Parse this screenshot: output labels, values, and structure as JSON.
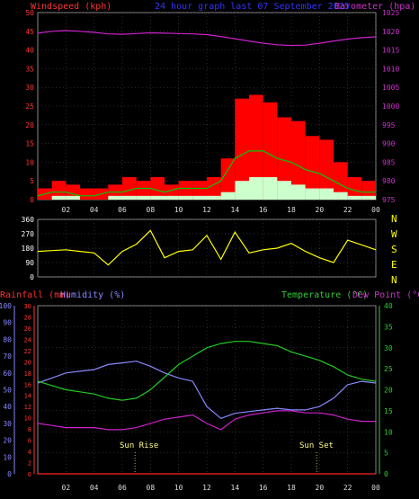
{
  "colors": {
    "wind": "#ff0000",
    "gust_fill": "#ff0000",
    "avg_line": "#00cc00",
    "min_fill": "#ccffcc",
    "pressure": "#cc22cc",
    "direction": "#ffff00",
    "rain": "#ff2222",
    "humidity": "#8888ff",
    "temperature": "#22cc22",
    "dewpoint": "#cc22cc",
    "axis_left_top": "#ff3333",
    "axis_right_top": "#cc33cc",
    "axis_bottom_left1": "#8888ff",
    "axis_bottom_left2": "#ff3333",
    "axis_bottom_right": "#33cc33",
    "grid": "#555555",
    "frame": "#888888"
  },
  "header": {
    "left": "Windspeed (kph)",
    "center": "24 hour graph last  07 September 2025",
    "right": "Barometer (hpa)"
  },
  "middle": {
    "compass": [
      "N",
      "W",
      "S",
      "E",
      "N"
    ]
  },
  "bottom_header": {
    "rain": "Rainfall (mm)",
    "humidity": "Humidity (%)",
    "temperature": "Temperature (°C)",
    "dewpoint": "Dew Point (°C)"
  },
  "annotations": {
    "sunrise": "Sun Rise",
    "sunset": "Sun Set"
  },
  "x_ticks": [
    "02",
    "04",
    "06",
    "08",
    "10",
    "12",
    "14",
    "16",
    "18",
    "20",
    "22",
    "00"
  ],
  "chart_data": [
    {
      "type": "area",
      "title": "24 hour graph last  07 September 2025",
      "ylabel": "Windspeed (kph)",
      "y2label": "Barometer (hpa)",
      "ylim": [
        0,
        50
      ],
      "y2lim": [
        975,
        1025
      ],
      "yticks": [
        "0",
        "5",
        "10",
        "15",
        "20",
        "25",
        "30",
        "35",
        "40",
        "45",
        "50"
      ],
      "y2ticks": [
        "975",
        "980",
        "985",
        "990",
        "995",
        "1000",
        "1005",
        "1010",
        "1015",
        "1020",
        "1025"
      ],
      "x": [
        0,
        1,
        2,
        3,
        4,
        5,
        6,
        7,
        8,
        9,
        10,
        11,
        12,
        13,
        14,
        15,
        16,
        17,
        18,
        19,
        20,
        21,
        22,
        23,
        24
      ],
      "series": [
        {
          "name": "gust",
          "values": [
            3,
            5,
            4,
            3,
            3,
            4,
            6,
            5,
            6,
            4,
            5,
            5,
            6,
            11,
            27,
            28,
            26,
            22,
            21,
            17,
            16,
            10,
            6,
            5,
            4
          ]
        },
        {
          "name": "average",
          "values": [
            1,
            2,
            2,
            1,
            1,
            2,
            2,
            3,
            3,
            2,
            3,
            3,
            3,
            5,
            11,
            13,
            13,
            11,
            10,
            8,
            7,
            5,
            3,
            2,
            2
          ]
        },
        {
          "name": "minimum",
          "values": [
            0,
            1,
            1,
            0,
            0,
            1,
            1,
            1,
            1,
            1,
            1,
            1,
            1,
            2,
            5,
            6,
            6,
            5,
            4,
            3,
            3,
            2,
            1,
            1,
            1
          ]
        },
        {
          "name": "pressure",
          "values": [
            1019.5,
            1020,
            1020.2,
            1020,
            1019.7,
            1019.3,
            1019.2,
            1019.4,
            1019.6,
            1019.5,
            1019.4,
            1019.3,
            1019.1,
            1018.6,
            1018,
            1017.4,
            1016.8,
            1016.4,
            1016.2,
            1016.3,
            1016.8,
            1017.4,
            1017.9,
            1018.3,
            1018.5
          ]
        }
      ]
    },
    {
      "type": "line",
      "ylabel": "Wind direction",
      "ylim": [
        0,
        360
      ],
      "yticks": [
        "0",
        "90",
        "180",
        "270",
        "360"
      ],
      "x": [
        0,
        1,
        2,
        3,
        4,
        5,
        6,
        7,
        8,
        9,
        10,
        11,
        12,
        13,
        14,
        15,
        16,
        17,
        18,
        19,
        20,
        21,
        22,
        23,
        24
      ],
      "series": [
        {
          "name": "direction",
          "values": [
            160,
            165,
            170,
            160,
            150,
            75,
            160,
            205,
            290,
            120,
            160,
            170,
            260,
            110,
            280,
            150,
            170,
            180,
            210,
            160,
            120,
            90,
            230,
            200,
            170
          ]
        }
      ]
    },
    {
      "type": "line",
      "ylabel": "Humidity (%)",
      "y2label": "Temperature (°C)",
      "ylim": [
        0,
        100
      ],
      "y2lim": [
        0,
        40
      ],
      "yticks_humidity": [
        "0",
        "10",
        "20",
        "30",
        "40",
        "50",
        "60",
        "70",
        "80",
        "90",
        "100"
      ],
      "yticks_rain": [
        "0",
        "2",
        "4",
        "6",
        "8",
        "10",
        "12",
        "14",
        "16",
        "18",
        "20",
        "22",
        "24",
        "26",
        "28",
        "30"
      ],
      "y2ticks": [
        "0",
        "5",
        "10",
        "15",
        "20",
        "25",
        "30",
        "35",
        "40"
      ],
      "x": [
        0,
        1,
        2,
        3,
        4,
        5,
        6,
        7,
        8,
        9,
        10,
        11,
        12,
        13,
        14,
        15,
        16,
        17,
        18,
        19,
        20,
        21,
        22,
        23,
        24
      ],
      "series": [
        {
          "name": "Humidity (%)",
          "values": [
            54,
            57,
            60,
            61,
            62,
            65,
            66,
            67,
            64,
            60,
            57,
            55,
            40,
            33,
            36,
            37,
            38,
            39,
            38,
            38,
            40,
            45,
            53,
            55,
            54
          ]
        },
        {
          "name": "Temperature (°C)",
          "values": [
            22,
            21,
            20,
            19.5,
            19,
            18,
            17.5,
            18,
            20,
            23,
            26,
            28,
            30,
            31,
            31.5,
            31.5,
            31,
            30.5,
            29,
            28,
            27,
            25.5,
            23.5,
            22.5,
            22
          ]
        },
        {
          "name": "Dew Point (°C)",
          "values": [
            12,
            11.5,
            11,
            11,
            11,
            10.5,
            10.5,
            11,
            12,
            13,
            13.5,
            14,
            12,
            10.5,
            13,
            14,
            14.5,
            15,
            15,
            14.5,
            14.5,
            14,
            13,
            12.5,
            12.5
          ]
        },
        {
          "name": "Rainfall (mm)",
          "values": [
            0,
            0,
            0,
            0,
            0,
            0,
            0,
            0,
            0,
            0,
            0,
            0,
            0,
            0,
            0,
            0,
            0,
            0,
            0,
            0,
            0,
            0,
            0,
            0,
            0
          ]
        }
      ]
    }
  ]
}
